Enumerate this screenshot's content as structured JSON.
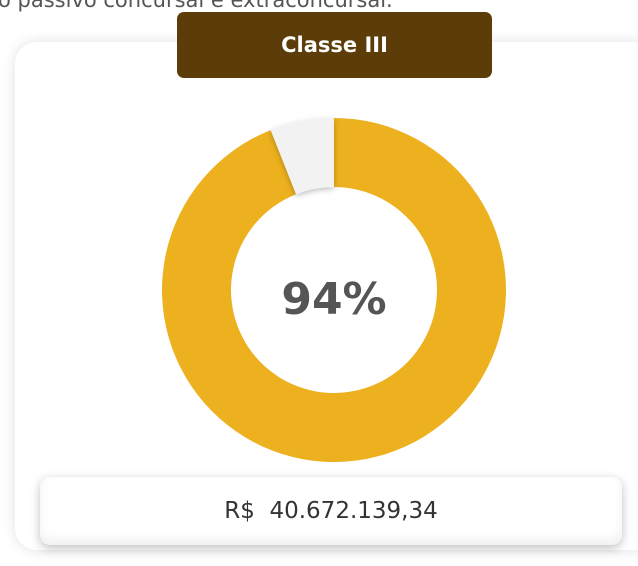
{
  "header_text": "o passivo concursal e extraconcursal.",
  "chart_data": {
    "type": "donut",
    "title": "Classe III",
    "values": [
      94,
      6
    ],
    "value_labels": [
      "94%",
      null
    ],
    "colors": [
      "#edb01e",
      "#f2f2f2"
    ]
  },
  "amount": "R$  40.672.139,34"
}
